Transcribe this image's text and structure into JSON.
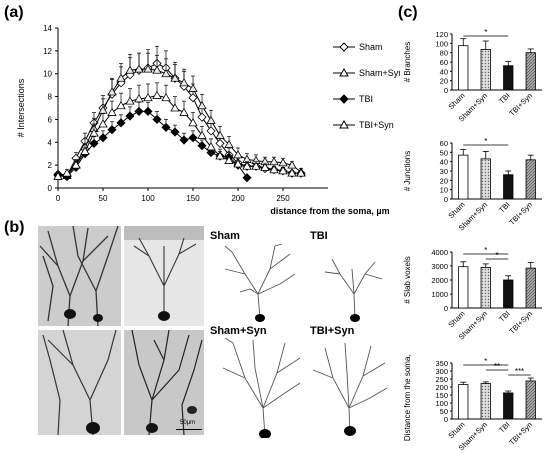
{
  "panels": {
    "a": "(a)",
    "b": "(b)",
    "c": "(c)"
  },
  "chart_data": [
    {
      "type": "line",
      "panel": "a",
      "xlabel": "distance from the soma, µm",
      "ylabel": "# Intersections",
      "xlim": [
        0,
        300
      ],
      "ylim": [
        0,
        14
      ],
      "xticks": [
        0,
        50,
        100,
        150,
        200,
        250
      ],
      "yticks": [
        0,
        2,
        4,
        6,
        8,
        10,
        12,
        14
      ],
      "legend_position": "right",
      "x": [
        0,
        10,
        20,
        30,
        40,
        50,
        60,
        70,
        80,
        90,
        100,
        110,
        120,
        130,
        140,
        150,
        160,
        170,
        180,
        190,
        200,
        210,
        220,
        230,
        240,
        250,
        260,
        270
      ],
      "series": [
        {
          "name": "Sham",
          "marker": "diamond-open",
          "values": [
            1.2,
            1.1,
            2.6,
            4.1,
            5.7,
            7.0,
            8.2,
            9.2,
            9.9,
            10.3,
            10.5,
            10.9,
            10.5,
            9.6,
            8.9,
            7.9,
            6.2,
            5.0,
            3.9,
            2.9,
            2.2,
            1.9,
            1.9,
            1.7,
            1.6,
            1.5,
            1.3,
            1.3
          ],
          "errors": [
            0.2,
            0.3,
            0.5,
            0.7,
            0.9,
            1.1,
            1.3,
            1.4,
            1.5,
            1.5,
            1.6,
            1.5,
            1.5,
            1.4,
            1.3,
            1.2,
            1.0,
            0.9,
            0.8,
            0.6,
            0.5,
            0.4,
            0.4,
            0.3,
            0.3,
            0.3,
            0.2,
            0.2
          ]
        },
        {
          "name": "Sham+Syn",
          "marker": "triangle-open",
          "values": [
            1.0,
            1.1,
            2.0,
            3.6,
            5.2,
            6.8,
            8.4,
            9.6,
            10.3,
            10.4,
            10.4,
            10.3,
            10.0,
            9.6,
            9.2,
            8.7,
            7.2,
            5.9,
            4.6,
            3.8,
            2.9,
            2.5,
            2.4,
            2.3,
            2.3,
            2.2,
            2.0,
            1.4
          ],
          "errors": [
            0.2,
            0.3,
            0.5,
            0.7,
            0.9,
            1.0,
            1.2,
            1.3,
            1.4,
            1.4,
            1.4,
            1.3,
            1.3,
            1.2,
            1.2,
            1.1,
            1.0,
            0.9,
            0.8,
            0.7,
            0.6,
            0.5,
            0.5,
            0.4,
            0.4,
            0.4,
            0.3,
            0.3
          ]
        },
        {
          "name": "TBI",
          "marker": "diamond-filled",
          "values": [
            1.1,
            1.0,
            1.8,
            3.0,
            3.9,
            4.4,
            5.1,
            5.7,
            6.3,
            6.7,
            6.7,
            6.0,
            5.3,
            4.9,
            4.2,
            4.4,
            3.7,
            3.1,
            2.8,
            2.7,
            2.0,
            0.9,
            null,
            null,
            null,
            null,
            null,
            null
          ],
          "errors": [
            0.2,
            0.3,
            0.4,
            0.5,
            0.6,
            0.6,
            0.7,
            0.7,
            0.8,
            0.8,
            0.8,
            0.7,
            0.7,
            0.6,
            0.6,
            0.6,
            0.5,
            0.5,
            0.4,
            0.4,
            0.3,
            0.2,
            null,
            null,
            null,
            null,
            null,
            null
          ]
        },
        {
          "name": "TBI+Syn",
          "marker": "triangle-open",
          "values": [
            1.0,
            1.3,
            2.0,
            3.2,
            4.8,
            5.6,
            6.6,
            7.2,
            7.6,
            7.8,
            7.9,
            8.1,
            7.9,
            7.0,
            6.6,
            5.7,
            4.6,
            3.6,
            2.8,
            2.4,
            2.1,
            1.9,
            1.9,
            1.8,
            1.6,
            1.5,
            1.3,
            1.3
          ],
          "errors": [
            0.2,
            0.3,
            0.4,
            0.6,
            0.8,
            0.9,
            1.0,
            1.1,
            1.1,
            1.2,
            1.2,
            1.1,
            1.1,
            1.0,
            1.0,
            0.9,
            0.8,
            0.7,
            0.6,
            0.5,
            0.5,
            0.4,
            0.4,
            0.3,
            0.3,
            0.3,
            0.2,
            0.2
          ]
        }
      ]
    },
    {
      "type": "bar",
      "panel": "c",
      "ylabel": "# Branches",
      "categories": [
        "Sham",
        "Sham+Syn",
        "TBI",
        "TBI+Syn"
      ],
      "values": [
        95,
        87,
        52,
        80
      ],
      "errors": [
        15,
        18,
        9,
        8
      ],
      "ylim": [
        0,
        120
      ],
      "yticks": [
        0,
        20,
        40,
        60,
        80,
        100,
        120
      ],
      "significance": [
        {
          "from": 0,
          "to": 2,
          "label": "*"
        }
      ]
    },
    {
      "type": "bar",
      "panel": "c",
      "ylabel": "# Junctions",
      "categories": [
        "Sham",
        "Sham+Syn",
        "TBI",
        "TBI+Syn"
      ],
      "values": [
        47,
        43,
        26,
        42
      ],
      "errors": [
        6,
        8,
        4,
        5
      ],
      "ylim": [
        0,
        60
      ],
      "yticks": [
        0,
        10,
        20,
        30,
        40,
        50,
        60
      ],
      "significance": [
        {
          "from": 0,
          "to": 2,
          "label": "*"
        }
      ]
    },
    {
      "type": "bar",
      "panel": "c",
      "ylabel": "# Slab voxels",
      "categories": [
        "Sham",
        "Sham+Syn",
        "TBI",
        "TBI+Syn"
      ],
      "values": [
        2950,
        2900,
        2000,
        2850
      ],
      "errors": [
        350,
        250,
        300,
        400
      ],
      "ylim": [
        0,
        4000
      ],
      "yticks": [
        0,
        1000,
        2000,
        3000,
        4000
      ],
      "significance": [
        {
          "from": 0,
          "to": 2,
          "label": "*"
        },
        {
          "from": 1,
          "to": 2,
          "label": "*"
        }
      ]
    },
    {
      "type": "bar",
      "panel": "c",
      "ylabel": "Distance from the soma, µm",
      "categories": [
        "Sham",
        "Sham+Syn",
        "TBI",
        "TBI+Syn"
      ],
      "values": [
        215,
        222,
        163,
        238
      ],
      "errors": [
        15,
        10,
        12,
        18
      ],
      "ylim": [
        0,
        350
      ],
      "yticks": [
        0,
        50,
        100,
        150,
        200,
        250,
        300,
        350
      ],
      "significance": [
        {
          "from": 0,
          "to": 2,
          "label": "*"
        },
        {
          "from": 1,
          "to": 2,
          "label": "**"
        },
        {
          "from": 2,
          "to": 3,
          "label": "***"
        }
      ]
    }
  ],
  "tracings": {
    "sham": "Sham",
    "tbi": "TBI",
    "sham_syn": "Sham+Syn",
    "tbi_syn": "TBI+Syn"
  },
  "scalebar_label": "50µm"
}
